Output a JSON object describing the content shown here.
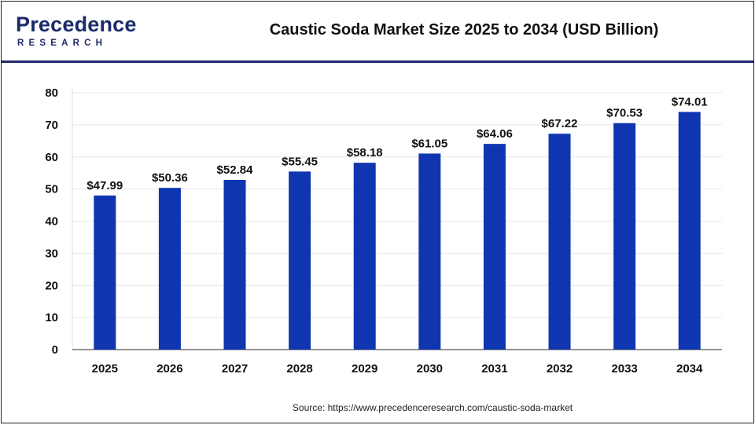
{
  "header": {
    "logo_main": "Precedence",
    "logo_sub": "RESEARCH",
    "title": "Caustic Soda Market Size 2025 to 2034 (USD Billion)"
  },
  "source": "Source: https://www.precedenceresearch.com/caustic-soda-market",
  "colors": {
    "bar": "#0f36b0",
    "brand": "#1b2a6b",
    "grid": "#e6e6e6"
  },
  "chart_data": {
    "type": "bar",
    "title": "Caustic Soda Market Size 2025 to 2034 (USD Billion)",
    "categories": [
      "2025",
      "2026",
      "2027",
      "2028",
      "2029",
      "2030",
      "2031",
      "2032",
      "2033",
      "2034"
    ],
    "values": [
      47.99,
      50.36,
      52.84,
      55.45,
      58.18,
      61.05,
      64.06,
      67.22,
      70.53,
      74.01
    ],
    "value_labels": [
      "$47.99",
      "$50.36",
      "$52.84",
      "$55.45",
      "$58.18",
      "$61.05",
      "$64.06",
      "$67.22",
      "$70.53",
      "$74.01"
    ],
    "ylim": [
      0,
      80
    ],
    "yticks": [
      0,
      10,
      20,
      30,
      40,
      50,
      60,
      70,
      80
    ],
    "xlabel": "",
    "ylabel": "",
    "grid": true,
    "legend": "none"
  }
}
